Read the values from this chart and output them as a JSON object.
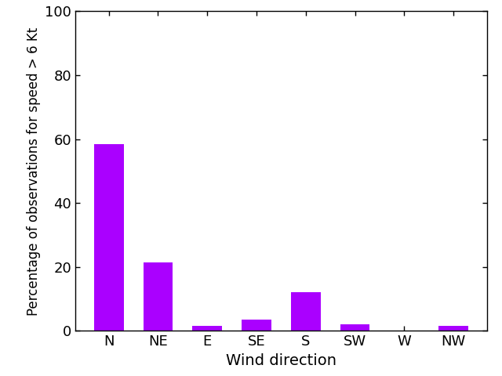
{
  "categories": [
    "N",
    "NE",
    "E",
    "SE",
    "S",
    "SW",
    "W",
    "NW"
  ],
  "values": [
    58.5,
    21.5,
    1.5,
    3.5,
    12.0,
    2.0,
    0.0,
    1.5
  ],
  "bar_color": "#aa00ff",
  "xlabel": "Wind direction",
  "ylabel": "Percentage of observations for speed > 6 Kt",
  "ylim": [
    0,
    100
  ],
  "yticks": [
    0,
    20,
    40,
    60,
    80,
    100
  ],
  "xlabel_fontsize": 14,
  "ylabel_fontsize": 12,
  "tick_fontsize": 13,
  "background_color": "#ffffff",
  "bar_width": 0.6,
  "figsize": [
    6.4,
    4.8
  ],
  "dpi": 100
}
